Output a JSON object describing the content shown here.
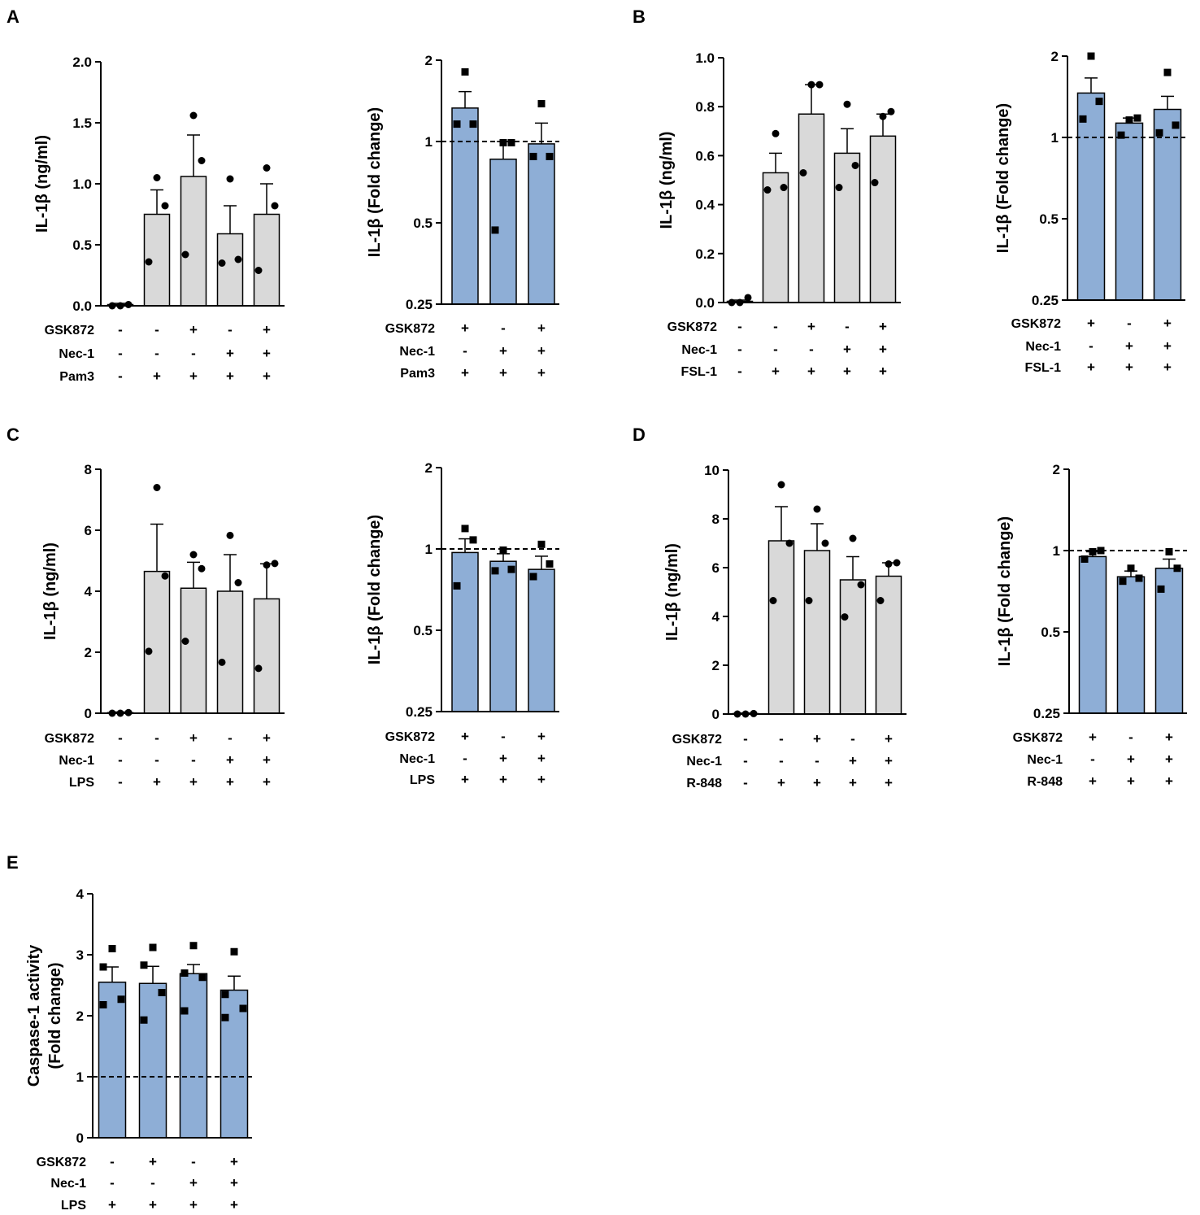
{
  "figure": {
    "colors": {
      "gray_bar": "#d9d9d9",
      "blue_bar": "#8eaed6",
      "ink": "#000000"
    },
    "row_labels": [
      "GSK872",
      "Nec-1"
    ]
  },
  "chart_data": [
    {
      "id": "A1",
      "panel_letter": "A",
      "type": "bar",
      "scale": "linear",
      "ylabel": "IL-1β (ng/ml)",
      "ylim": [
        0,
        2
      ],
      "yticks": [
        "0.0",
        "0.5",
        "1.0",
        "1.5",
        "2.0"
      ],
      "bar_color": "gray",
      "marker": "circle",
      "values": [
        0.01,
        0.75,
        1.06,
        0.59,
        0.75
      ],
      "sem": [
        0.01,
        0.2,
        0.34,
        0.23,
        0.25
      ],
      "points": [
        [
          0.0,
          0.01,
          0.0
        ],
        [
          0.36,
          0.82,
          1.05
        ],
        [
          0.42,
          1.19,
          1.56
        ],
        [
          0.35,
          0.38,
          1.04
        ],
        [
          0.29,
          0.82,
          1.13
        ]
      ],
      "reference_line": null,
      "treatment_name": "Pam3",
      "rows": [
        [
          "-",
          "-",
          "+",
          "-",
          "+"
        ],
        [
          "-",
          "-",
          "-",
          "+",
          "+"
        ],
        [
          "-",
          "+",
          "+",
          "+",
          "+"
        ]
      ]
    },
    {
      "id": "A2",
      "type": "bar",
      "scale": "log2",
      "ylabel": "IL-1β (Fold change)",
      "ylim": [
        0.25,
        2
      ],
      "yticks": [
        "0.25",
        "0.5",
        "1",
        "2"
      ],
      "bar_color": "blue",
      "marker": "square",
      "values": [
        1.33,
        0.86,
        0.98
      ],
      "sem": [
        0.2,
        0.14,
        0.19
      ],
      "points": [
        [
          1.16,
          1.16,
          1.81
        ],
        [
          0.47,
          0.99,
          0.99
        ],
        [
          0.88,
          0.88,
          1.38
        ]
      ],
      "reference_line": 1,
      "treatment_name": "Pam3",
      "rows": [
        [
          "+",
          "-",
          "+"
        ],
        [
          "-",
          "+",
          "+"
        ],
        [
          "+",
          "+",
          "+"
        ]
      ]
    },
    {
      "id": "B1",
      "panel_letter": "B",
      "type": "bar",
      "scale": "linear",
      "ylabel": "IL-1β (ng/ml)",
      "ylim": [
        0,
        1
      ],
      "yticks": [
        "0.0",
        "0.2",
        "0.4",
        "0.6",
        "0.8",
        "1.0"
      ],
      "bar_color": "gray",
      "marker": "circle",
      "values": [
        0.005,
        0.53,
        0.77,
        0.61,
        0.68
      ],
      "sem": [
        0.005,
        0.08,
        0.12,
        0.1,
        0.09
      ],
      "points": [
        [
          0.0,
          0.02,
          0.0
        ],
        [
          0.46,
          0.47,
          0.69
        ],
        [
          0.53,
          0.89,
          0.89
        ],
        [
          0.47,
          0.56,
          0.81
        ],
        [
          0.49,
          0.78,
          0.76
        ]
      ],
      "reference_line": null,
      "treatment_name": "FSL-1",
      "rows": [
        [
          "-",
          "-",
          "+",
          "-",
          "+"
        ],
        [
          "-",
          "-",
          "-",
          "+",
          "+"
        ],
        [
          "-",
          "+",
          "+",
          "+",
          "+"
        ]
      ]
    },
    {
      "id": "B2",
      "type": "bar",
      "scale": "log2",
      "ylabel": "IL-1β (Fold change)",
      "ylim": [
        0.25,
        2
      ],
      "yticks": [
        "0.25",
        "0.5",
        "1",
        "2"
      ],
      "bar_color": "blue",
      "marker": "square",
      "values": [
        1.46,
        1.13,
        1.27
      ],
      "sem": [
        0.2,
        0.05,
        0.15
      ],
      "points": [
        [
          1.17,
          1.36,
          2.0
        ],
        [
          1.02,
          1.18,
          1.16
        ],
        [
          1.04,
          1.11,
          1.74
        ]
      ],
      "reference_line": 1,
      "treatment_name": "FSL-1",
      "rows": [
        [
          "+",
          "-",
          "+"
        ],
        [
          "-",
          "+",
          "+"
        ],
        [
          "+",
          "+",
          "+"
        ]
      ]
    },
    {
      "id": "C1",
      "panel_letter": "C",
      "type": "bar",
      "scale": "linear",
      "ylabel": "IL-1β (ng/ml)",
      "ylim": [
        0,
        8
      ],
      "yticks": [
        "0",
        "2",
        "4",
        "6",
        "8"
      ],
      "bar_color": "gray",
      "marker": "circle",
      "values": [
        0.02,
        4.65,
        4.1,
        4.0,
        3.75
      ],
      "sem": [
        0.02,
        1.55,
        0.85,
        1.2,
        1.15
      ],
      "points": [
        [
          0.0,
          0.02,
          0.0
        ],
        [
          2.03,
          4.5,
          7.4
        ],
        [
          2.36,
          4.74,
          5.2
        ],
        [
          1.67,
          4.28,
          5.83
        ],
        [
          1.47,
          4.91,
          4.86
        ]
      ],
      "reference_line": null,
      "treatment_name": "LPS",
      "rows": [
        [
          "-",
          "-",
          "+",
          "-",
          "+"
        ],
        [
          "-",
          "-",
          "-",
          "+",
          "+"
        ],
        [
          "-",
          "+",
          "+",
          "+",
          "+"
        ]
      ]
    },
    {
      "id": "C2",
      "type": "bar",
      "scale": "log2",
      "ylabel": "IL-1β (Fold change)",
      "ylim": [
        0.25,
        2
      ],
      "yticks": [
        "0.25",
        "0.5",
        "1",
        "2"
      ],
      "bar_color": "blue",
      "marker": "square",
      "values": [
        0.97,
        0.9,
        0.84
      ],
      "sem": [
        0.12,
        0.06,
        0.1
      ],
      "points": [
        [
          0.73,
          1.08,
          1.19
        ],
        [
          0.83,
          0.84,
          0.99
        ],
        [
          0.79,
          0.88,
          1.04
        ]
      ],
      "reference_line": 1,
      "treatment_name": "LPS",
      "rows": [
        [
          "+",
          "-",
          "+"
        ],
        [
          "-",
          "+",
          "+"
        ],
        [
          "+",
          "+",
          "+"
        ]
      ]
    },
    {
      "id": "D1",
      "panel_letter": "D",
      "type": "bar",
      "scale": "linear",
      "ylabel": "IL-1β (ng/ml)",
      "ylim": [
        0,
        10
      ],
      "yticks": [
        "0",
        "2",
        "4",
        "6",
        "8",
        "10"
      ],
      "bar_color": "gray",
      "marker": "circle",
      "values": [
        0.02,
        7.1,
        6.7,
        5.5,
        5.65
      ],
      "sem": [
        0.02,
        1.4,
        1.1,
        0.95,
        0.55
      ],
      "points": [
        [
          0.0,
          0.02,
          0.0
        ],
        [
          4.65,
          7.0,
          9.4
        ],
        [
          4.65,
          7.0,
          8.4
        ],
        [
          3.98,
          5.3,
          7.2
        ],
        [
          4.65,
          6.2,
          6.15
        ]
      ],
      "reference_line": null,
      "treatment_name": "R-848",
      "rows": [
        [
          "-",
          "-",
          "+",
          "-",
          "+"
        ],
        [
          "-",
          "-",
          "-",
          "+",
          "+"
        ],
        [
          "-",
          "+",
          "+",
          "+",
          "+"
        ]
      ]
    },
    {
      "id": "D2",
      "type": "bar",
      "scale": "log2",
      "ylabel": "IL-1β (Fold change)",
      "ylim": [
        0.25,
        2
      ],
      "yticks": [
        "0.25",
        "0.5",
        "1",
        "2"
      ],
      "bar_color": "blue",
      "marker": "square",
      "values": [
        0.95,
        0.8,
        0.86
      ],
      "sem": [
        0.04,
        0.04,
        0.07
      ],
      "points": [
        [
          0.93,
          1.0,
          0.99
        ],
        [
          0.77,
          0.79,
          0.86
        ],
        [
          0.72,
          0.86,
          0.99
        ]
      ],
      "reference_line": 1,
      "treatment_name": "R-848",
      "rows": [
        [
          "+",
          "-",
          "+"
        ],
        [
          "-",
          "+",
          "+"
        ],
        [
          "+",
          "+",
          "+"
        ]
      ]
    },
    {
      "id": "E",
      "panel_letter": "E",
      "type": "bar",
      "scale": "linear",
      "ylabel": [
        "Caspase-1 activity",
        "(Fold change)"
      ],
      "ylim": [
        0,
        4
      ],
      "yticks": [
        "0",
        "1",
        "2",
        "3",
        "4"
      ],
      "bar_color": "blue",
      "marker": "square",
      "values": [
        2.55,
        2.53,
        2.69,
        2.42
      ],
      "sem": [
        0.25,
        0.28,
        0.15,
        0.23
      ],
      "points": [
        [
          2.18,
          2.27,
          2.8,
          3.1
        ],
        [
          1.93,
          2.38,
          2.83,
          3.12
        ],
        [
          2.08,
          2.63,
          2.7,
          3.15
        ],
        [
          1.97,
          2.12,
          2.35,
          3.05
        ]
      ],
      "reference_line": 1,
      "treatment_name": "LPS",
      "rows": [
        [
          "-",
          "+",
          "-",
          "+"
        ],
        [
          "-",
          "-",
          "+",
          "+"
        ],
        [
          "+",
          "+",
          "+",
          "+"
        ]
      ]
    }
  ]
}
